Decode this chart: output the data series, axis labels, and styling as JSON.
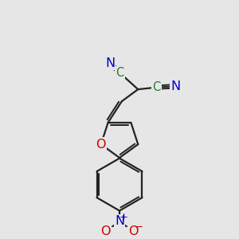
{
  "bg_color": "#e6e6e6",
  "bond_color": "#222222",
  "bond_width": 1.6,
  "atom_colors": {
    "N": "#0000cc",
    "O": "#cc0000",
    "C": "#2a7a2a"
  },
  "font_size": 10.5,
  "figsize": [
    3.0,
    3.0
  ],
  "dpi": 100,
  "xlim": [
    -2.5,
    2.5
  ],
  "ylim": [
    -4.5,
    4.5
  ]
}
